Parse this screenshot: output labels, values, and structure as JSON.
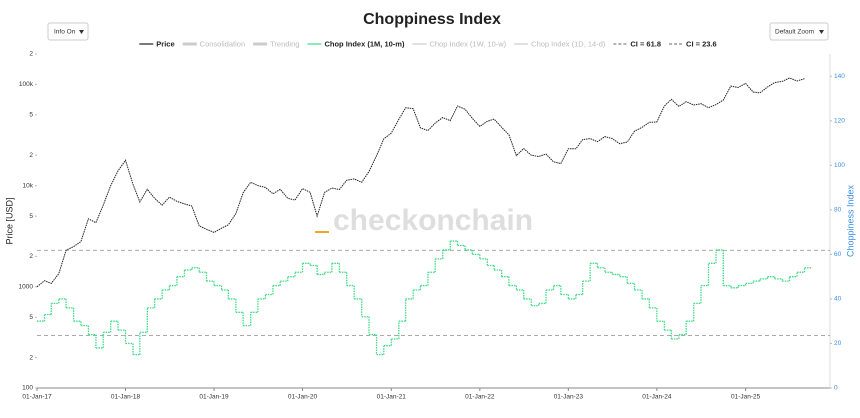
{
  "chart_data": {
    "type": "line",
    "title": "Choppiness Index",
    "controls": {
      "info": "Info On",
      "zoom": "Default Zoom"
    },
    "watermark": "checkonchain",
    "y_label": "Price [USD]",
    "y2_label": "Choppiness Index",
    "log_y": true,
    "x": [
      "2017-01-01",
      "2017-02-01",
      "2017-03-01",
      "2017-04-01",
      "2017-05-01",
      "2017-06-01",
      "2017-07-01",
      "2017-08-01",
      "2017-09-01",
      "2017-10-01",
      "2017-11-01",
      "2017-12-01",
      "2018-01-01",
      "2018-02-01",
      "2018-03-01",
      "2018-04-01",
      "2018-05-01",
      "2018-06-01",
      "2018-07-01",
      "2018-08-01",
      "2018-09-01",
      "2018-10-01",
      "2018-11-01",
      "2018-12-01",
      "2019-01-01",
      "2019-02-01",
      "2019-03-01",
      "2019-04-01",
      "2019-05-01",
      "2019-06-01",
      "2019-07-01",
      "2019-08-01",
      "2019-09-01",
      "2019-10-01",
      "2019-11-01",
      "2019-12-01",
      "2020-01-01",
      "2020-02-01",
      "2020-03-01",
      "2020-04-01",
      "2020-05-01",
      "2020-06-01",
      "2020-07-01",
      "2020-08-01",
      "2020-09-01",
      "2020-10-01",
      "2020-11-01",
      "2020-12-01",
      "2021-01-01",
      "2021-02-01",
      "2021-03-01",
      "2021-04-01",
      "2021-05-01",
      "2021-06-01",
      "2021-07-01",
      "2021-08-01",
      "2021-09-01",
      "2021-10-01",
      "2021-11-01",
      "2021-12-01",
      "2022-01-01",
      "2022-02-01",
      "2022-03-01",
      "2022-04-01",
      "2022-05-01",
      "2022-06-01",
      "2022-07-01",
      "2022-08-01",
      "2022-09-01",
      "2022-10-01",
      "2022-11-01",
      "2022-12-01",
      "2023-01-01",
      "2023-02-01",
      "2023-03-01",
      "2023-04-01",
      "2023-05-01",
      "2023-06-01",
      "2023-07-01",
      "2023-08-01",
      "2023-09-01",
      "2023-10-01",
      "2023-11-01",
      "2023-12-01",
      "2024-01-01",
      "2024-02-01",
      "2024-03-01",
      "2024-04-01",
      "2024-05-01",
      "2024-06-01",
      "2024-07-01",
      "2024-08-01",
      "2024-09-01",
      "2024-10-01",
      "2024-11-01",
      "2024-12-01",
      "2025-01-01",
      "2025-02-01",
      "2025-03-01",
      "2025-04-01",
      "2025-05-01",
      "2025-06-01",
      "2025-07-01",
      "2025-08-01",
      "2025-09-01"
    ],
    "series": [
      {
        "name": "Price",
        "color": "#222222",
        "values": [
          1000,
          1150,
          1080,
          1350,
          2300,
          2500,
          2800,
          4700,
          4300,
          6400,
          10000,
          14000,
          17800,
          10300,
          6900,
          9200,
          7500,
          6400,
          7700,
          7000,
          6600,
          6300,
          4000,
          3700,
          3450,
          3800,
          4100,
          5300,
          8500,
          10800,
          10000,
          9600,
          8300,
          9200,
          7500,
          7200,
          9350,
          8600,
          5000,
          8600,
          9450,
          9150,
          11300,
          11650,
          10800,
          13800,
          19700,
          29000,
          33100,
          45200,
          58800,
          57700,
          37300,
          35000,
          41500,
          47100,
          43800,
          61300,
          57000,
          46300,
          38500,
          43200,
          45500,
          37700,
          31800,
          19800,
          23300,
          20000,
          19400,
          20500,
          17200,
          16500,
          23100,
          23100,
          28500,
          29200,
          27200,
          30500,
          29200,
          26000,
          27000,
          34500,
          37700,
          42300,
          42600,
          61200,
          71300,
          60600,
          67500,
          62700,
          64600,
          58900,
          63300,
          70200,
          96400,
          93400,
          102400,
          84300,
          82500,
          94200,
          104600,
          107100,
          115800,
          108200,
          114000
        ]
      },
      {
        "name": "Chop Index (1M, 10-m)",
        "color": "#3ddc84",
        "axis": "y2",
        "values": [
          30,
          33,
          38,
          40,
          36,
          30,
          28,
          24,
          18,
          25,
          30,
          26,
          20,
          15,
          25,
          36,
          40,
          44,
          46,
          50,
          53,
          54,
          52,
          48,
          46,
          44,
          40,
          34,
          28,
          34,
          40,
          42,
          46,
          48,
          50,
          52,
          56,
          55,
          51,
          52,
          56,
          52,
          46,
          40,
          32,
          24,
          15,
          19,
          22,
          30,
          40,
          44,
          46,
          52,
          58,
          62,
          66,
          64,
          62,
          60,
          58,
          55,
          53,
          50,
          46,
          44,
          40,
          37,
          38,
          44,
          46,
          42,
          40,
          42,
          48,
          56,
          54,
          52,
          51,
          50,
          47,
          44,
          40,
          36,
          30,
          26,
          22,
          24,
          30,
          38,
          46,
          56,
          62,
          46,
          45,
          46,
          47,
          48,
          49,
          50,
          49,
          48,
          50,
          52,
          54
        ]
      }
    ],
    "legend_extra": [
      {
        "name": "Consolidation",
        "color": "#cccccc",
        "hidden": true
      },
      {
        "name": "Trending",
        "color": "#cccccc",
        "hidden": true
      },
      {
        "name": "Chop Index (1W, 10-w)",
        "color": "#cccccc",
        "hidden": true
      },
      {
        "name": "Chop Index (1D, 14-d)",
        "color": "#cccccc",
        "hidden": true
      }
    ],
    "ref_lines": [
      {
        "name": "CI = 61.8",
        "value": 61.8,
        "axis": "y2",
        "color": "#aaaaaa"
      },
      {
        "name": "CI = 23.6",
        "value": 23.6,
        "axis": "y2",
        "color": "#aaaaaa"
      }
    ],
    "xlim": [
      "2017-01-01",
      "2025-12-15"
    ],
    "xticks": [
      {
        "value": "2017-01-01",
        "label": "01-Jan-17"
      },
      {
        "value": "2018-01-01",
        "label": "01-Jan-18"
      },
      {
        "value": "2019-01-01",
        "label": "01-Jan-19"
      },
      {
        "value": "2020-01-01",
        "label": "01-Jan-20"
      },
      {
        "value": "2021-01-01",
        "label": "01-Jan-21"
      },
      {
        "value": "2022-01-01",
        "label": "01-Jan-22"
      },
      {
        "value": "2023-01-01",
        "label": "01-Jan-23"
      },
      {
        "value": "2024-01-01",
        "label": "01-Jan-24"
      },
      {
        "value": "2025-01-01",
        "label": "01-Jan-25"
      }
    ],
    "ylim": [
      100,
      200000
    ],
    "yticks": [
      100,
      {
        "value": 200,
        "label": "2"
      },
      {
        "value": 500,
        "label": "5"
      },
      1000,
      {
        "value": 2000,
        "label": "2"
      },
      {
        "value": 5000,
        "label": "5"
      },
      {
        "value": 10000,
        "label": "10k"
      },
      {
        "value": 20000,
        "label": "2"
      },
      {
        "value": 50000,
        "label": "5"
      },
      {
        "value": 100000,
        "label": "100k"
      },
      {
        "value": 200000,
        "label": "2"
      }
    ],
    "y2lim": [
      0,
      150
    ],
    "y2ticks": [
      0,
      20,
      40,
      60,
      80,
      100,
      120,
      140
    ]
  }
}
